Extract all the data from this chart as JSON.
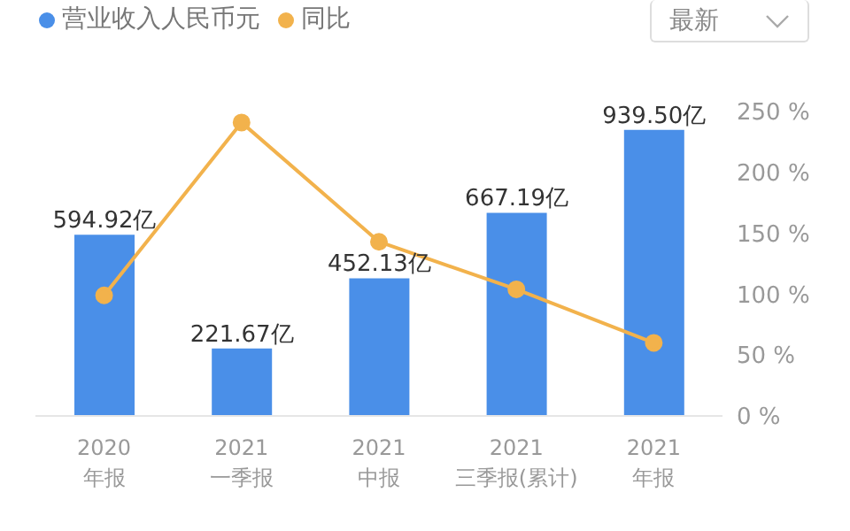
{
  "chart_data": {
    "type": "bar",
    "categories": [
      "2020\n年报",
      "2021\n一季报",
      "2021\n中报",
      "2021\n三季报(累计)",
      "2021\n年报"
    ],
    "series": [
      {
        "name": "营业收入人民币元",
        "color": "#4a8fe8",
        "values": [
          594.92,
          221.67,
          452.13,
          667.19,
          939.5
        ],
        "value_labels": [
          "594.92亿",
          "221.67亿",
          "452.13亿",
          "667.19亿",
          "939.50亿"
        ]
      },
      {
        "name": "同比",
        "type": "line",
        "axis": "y2",
        "color": "#f2b24c",
        "marker": "circle",
        "values": [
          99,
          241,
          143,
          104,
          60
        ]
      }
    ],
    "y2lim": [
      0,
      250
    ],
    "y2ticks": [
      {
        "value": 0,
        "label": "0 %"
      },
      {
        "value": 50,
        "label": "50 %"
      },
      {
        "value": 100,
        "label": "100 %"
      },
      {
        "value": 150,
        "label": "150 %"
      },
      {
        "value": 200,
        "label": "200 %"
      },
      {
        "value": 250,
        "label": "250 %"
      }
    ],
    "legend": "top left",
    "annotations": [
      "最新"
    ]
  }
}
